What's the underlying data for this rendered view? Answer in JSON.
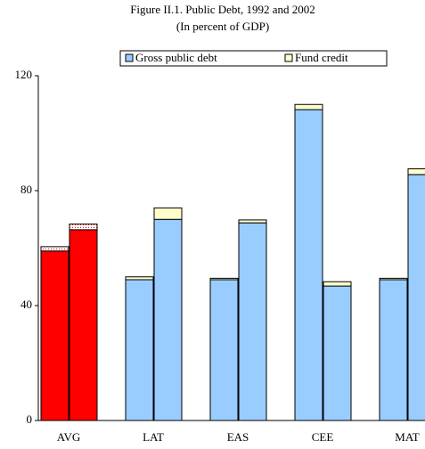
{
  "chart_data": {
    "type": "grouped-stacked-bar",
    "title": "Figure II.1. Public Debt, 1992 and 2002",
    "subtitle": "(In percent of GDP)",
    "categories": [
      "AVG",
      "LAT",
      "EAS",
      "CEE",
      "MAT"
    ],
    "series": [
      {
        "name": "Gross public debt",
        "color": "#99ccff",
        "colors": [
          "#ff0000",
          "#99ccff",
          "#99ccff",
          "#99ccff",
          "#99ccff"
        ],
        "values": [
          [
            59,
            66.4
          ],
          [
            49,
            70
          ],
          [
            49,
            68.8
          ],
          [
            108.2,
            46.8
          ],
          [
            49,
            85.6
          ]
        ]
      },
      {
        "name": "Fund credit",
        "color": "#ffffcc",
        "colors": [
          "#ffffff",
          "#ffffcc",
          "#ffffcc",
          "#ffffcc",
          "#ffffcc"
        ],
        "values": [
          [
            1.5,
            2
          ],
          [
            1,
            4
          ],
          [
            0.5,
            1
          ],
          [
            1.8,
            1.5
          ],
          [
            0.5,
            2
          ]
        ]
      }
    ],
    "ylim": [
      0,
      120
    ],
    "yticks": [
      0,
      40,
      80,
      120
    ],
    "grid": false
  }
}
